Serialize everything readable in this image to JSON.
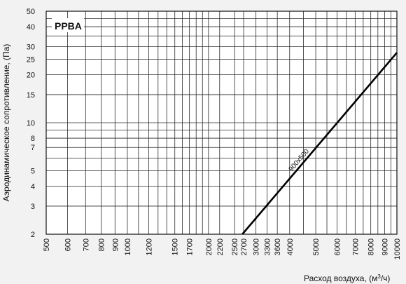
{
  "chart_data": {
    "type": "line",
    "label": "PPBA",
    "xlabel": "Расход воздуха, (м",
    "xlabel_sup": "3",
    "xlabel_tail": "/ч)",
    "ylabel": "Аэродинамическое сопротивление, (Па)",
    "xscale": "log",
    "yscale": "log",
    "xlim": [
      500,
      10000
    ],
    "ylim": [
      2,
      50
    ],
    "grid": true,
    "x_ticks": [
      500,
      600,
      700,
      800,
      900,
      1000,
      1200,
      1500,
      1700,
      2000,
      2200,
      2500,
      2700,
      3000,
      3300,
      3600,
      4000,
      5000,
      6000,
      7000,
      8000,
      9000,
      10000
    ],
    "y_ticks": [
      2,
      3,
      4,
      5,
      7,
      8,
      10,
      15,
      20,
      25,
      30,
      40,
      50
    ],
    "x_grid": [
      500,
      600,
      700,
      800,
      900,
      1000,
      1100,
      1200,
      1300,
      1400,
      1500,
      1600,
      1700,
      1800,
      1900,
      2000,
      2200,
      2500,
      2700,
      3000,
      3300,
      3600,
      4000,
      4500,
      5000,
      5500,
      6000,
      6500,
      7000,
      7500,
      8000,
      8500,
      9000,
      9500,
      10000
    ],
    "y_grid": [
      2,
      3,
      4,
      5,
      6,
      7,
      8,
      9,
      10,
      15,
      20,
      25,
      30,
      35,
      40,
      45,
      50
    ],
    "series": [
      {
        "name": "900x500",
        "x": [
          2670,
          10000
        ],
        "y": [
          2,
          27.5
        ]
      }
    ]
  }
}
